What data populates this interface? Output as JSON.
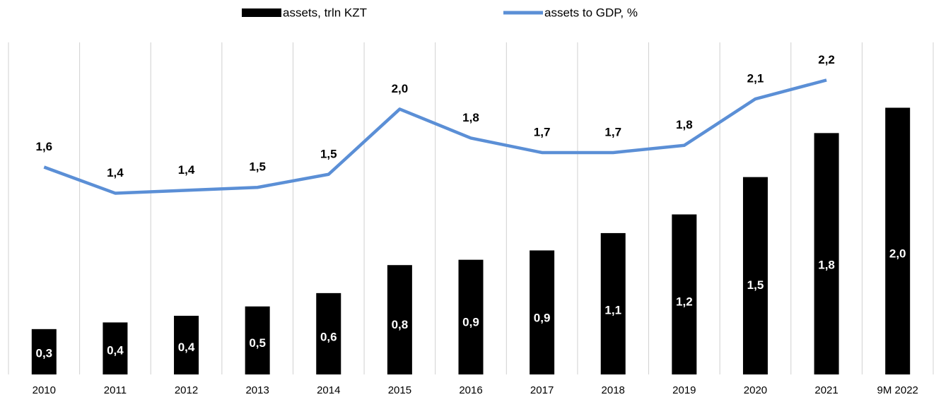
{
  "chart_data": {
    "type": "bar_line",
    "categories": [
      "2010",
      "2011",
      "2012",
      "2013",
      "2014",
      "2015",
      "2016",
      "2017",
      "2018",
      "2019",
      "2020",
      "2021",
      "9M 2022"
    ],
    "series": [
      {
        "name": "assets, trln KZT",
        "type": "bar",
        "color": "#000000",
        "values": [
          0.34,
          0.39,
          0.44,
          0.51,
          0.61,
          0.82,
          0.86,
          0.93,
          1.06,
          1.2,
          1.48,
          1.81,
          2.0
        ],
        "value_labels": [
          "0,3",
          "0,4",
          "0,4",
          "0,5",
          "0,6",
          "0,8",
          "0,9",
          "0,9",
          "1,1",
          "1,2",
          "1,5",
          "1,8",
          "2,0"
        ]
      },
      {
        "name": "assets to GDP, %",
        "type": "line",
        "axis": "y2",
        "color": "#5b8fd6",
        "values": [
          1.6,
          1.42,
          1.44,
          1.46,
          1.55,
          2.0,
          1.8,
          1.7,
          1.7,
          1.75,
          2.07,
          2.2,
          null
        ],
        "value_labels": [
          "1,6",
          "1,4",
          "1,4",
          "1,5",
          "1,5",
          "2,0",
          "1,8",
          "1,7",
          "1,7",
          "1,8",
          "2,1",
          "2,2",
          null
        ]
      }
    ],
    "ylim": [
      0,
      2.49
    ],
    "y2lim": [
      0.17,
      2.46
    ],
    "grid": true,
    "legend": "top"
  }
}
